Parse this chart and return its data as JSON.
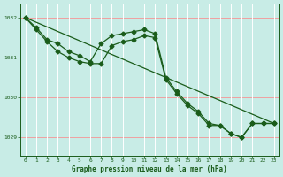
{
  "title": "Graphe pression niveau de la mer (hPa)",
  "bg_color": "#c8ece6",
  "grid_color_h": "#f0a0a0",
  "grid_color_v": "#ffffff",
  "line_color": "#1a5c1a",
  "xlim": [
    -0.5,
    23.5
  ],
  "ylim": [
    1028.55,
    1032.35
  ],
  "yticks": [
    1029,
    1030,
    1031,
    1032
  ],
  "xticks": [
    0,
    1,
    2,
    3,
    4,
    5,
    6,
    7,
    8,
    9,
    10,
    11,
    12,
    13,
    14,
    15,
    16,
    17,
    18,
    19,
    20,
    21,
    22,
    23
  ],
  "series1": {
    "x": [
      0,
      23
    ],
    "y": [
      1032.0,
      1029.35
    ]
  },
  "series2": {
    "x": [
      0,
      1,
      2,
      3,
      4,
      5,
      6,
      7,
      8,
      9,
      10,
      11,
      12,
      13,
      14,
      15,
      16,
      17,
      18,
      19,
      20,
      21,
      22,
      23
    ],
    "y": [
      1032.0,
      1031.75,
      1031.45,
      1031.35,
      1031.15,
      1031.05,
      1030.9,
      1031.35,
      1031.55,
      1031.6,
      1031.65,
      1031.7,
      1031.6,
      1030.5,
      1030.15,
      1029.85,
      1029.65,
      1029.35,
      1029.3,
      1029.1,
      1029.0,
      1029.35,
      1029.35,
      1029.35
    ]
  },
  "series3": {
    "x": [
      0,
      1,
      2,
      3,
      4,
      5,
      6,
      7,
      8,
      9,
      10,
      11,
      12,
      13,
      14,
      15,
      16,
      17,
      18,
      19,
      20,
      21,
      22,
      23
    ],
    "y": [
      1032.0,
      1031.7,
      1031.4,
      1031.15,
      1031.0,
      1030.9,
      1030.85,
      1030.85,
      1031.3,
      1031.4,
      1031.45,
      1031.55,
      1031.5,
      1030.45,
      1030.1,
      1029.8,
      1029.6,
      1029.3,
      1029.3,
      1029.1,
      1029.0,
      1029.35,
      1029.35,
      1029.35
    ]
  }
}
